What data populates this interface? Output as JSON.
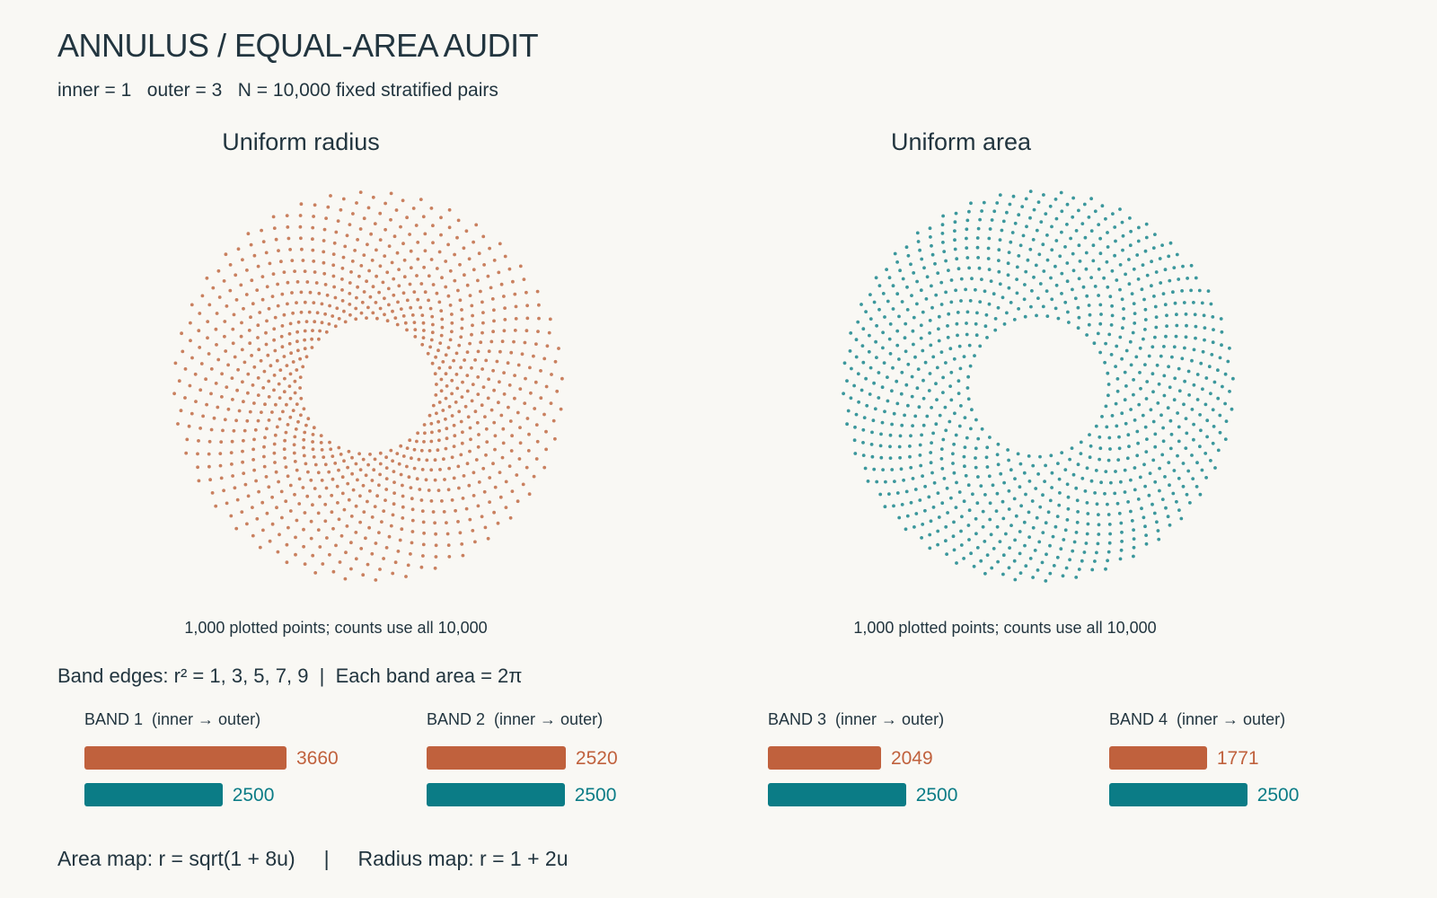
{
  "title": "ANNULUS / EQUAL-AREA AUDIT",
  "subtitle": "inner = 1   outer = 3   N = 10,000 fixed stratified pairs",
  "band_edges_text": "Band edges: r² = 1, 3, 5, 7, 9  |  Each band area = 2π",
  "footer": {
    "area_map": "Area map: r = sqrt(1 + 8u)",
    "separator": "|",
    "radius_map": "Radius map: r = 1 + 2u"
  },
  "colors": {
    "uniform_radius": "#c0613d",
    "uniform_area": "#0b7c86",
    "radius_points": "#c9805f",
    "area_points": "#3b979c"
  },
  "chart_data": [
    {
      "type": "scatter",
      "title": "Uniform radius",
      "caption": "1,000 plotted points; counts use all 10,000",
      "inner_radius": 1,
      "outer_radius": 3,
      "mapping": "r = 1 + 2u",
      "spiral_arms": 40,
      "points_per_arm": 25,
      "plotted_points": 1000
    },
    {
      "type": "scatter",
      "title": "Uniform area",
      "caption": "1,000 plotted points; counts use all 10,000",
      "inner_radius": 1,
      "outer_radius": 3,
      "mapping": "r = sqrt(1 + 8u)",
      "spiral_arms": 40,
      "points_per_arm": 25,
      "plotted_points": 1000
    },
    {
      "type": "bar",
      "bands": [
        {
          "label": "BAND 1  (inner → outer)",
          "uniform_radius": 3660,
          "uniform_area": 2500
        },
        {
          "label": "BAND 2  (inner → outer)",
          "uniform_radius": 2520,
          "uniform_area": 2500
        },
        {
          "label": "BAND 3  (inner → outer)",
          "uniform_radius": 2049,
          "uniform_area": 2500
        },
        {
          "label": "BAND 4  (inner → outer)",
          "uniform_radius": 1771,
          "uniform_area": 2500
        }
      ],
      "max_value": 3660
    }
  ]
}
